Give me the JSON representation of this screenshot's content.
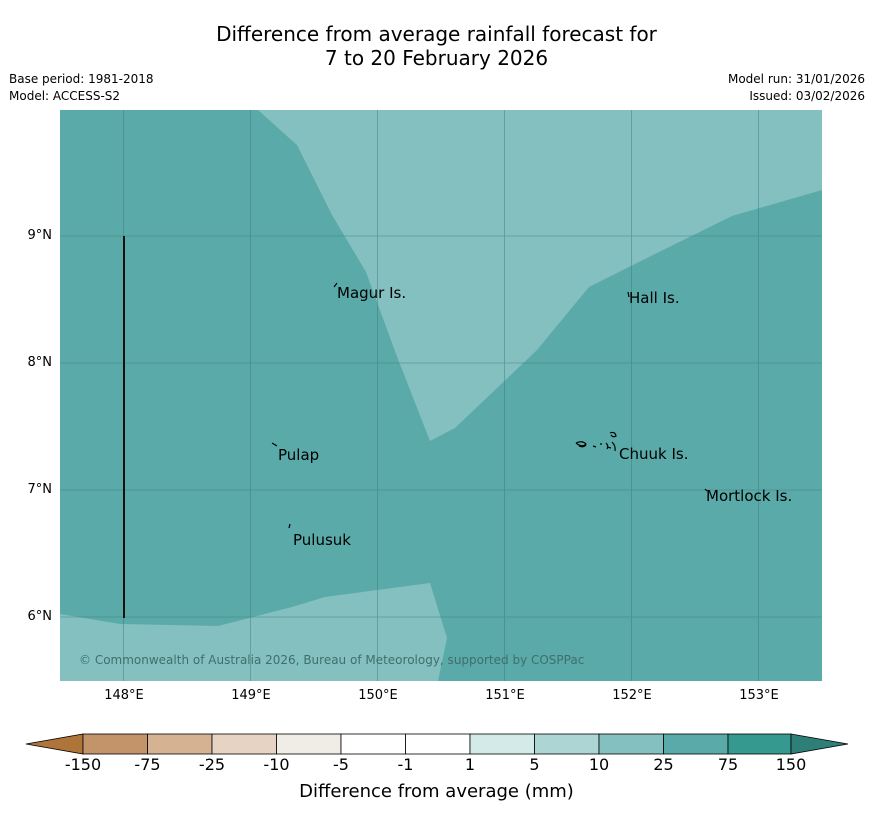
{
  "title": {
    "line1": "Difference from average rainfall forecast for",
    "line2": "7 to 20 February 2026"
  },
  "meta": {
    "base_period": "Base period: 1981-2018",
    "model": "Model: ACCESS-S2",
    "model_run": "Model run: 31/01/2026",
    "issued": "Issued: 03/02/2026"
  },
  "map": {
    "lat_labels": [
      "9°N",
      "8°N",
      "7°N",
      "6°N"
    ],
    "lon_labels": [
      "148°E",
      "149°E",
      "150°E",
      "151°E",
      "152°E",
      "153°E"
    ],
    "places": [
      "Magur Is.",
      "Hall Is.",
      "Pulap",
      "Chuuk Is.",
      "Mortlock Is.",
      "Pulusuk"
    ],
    "copyright": "© Commonwealth of Australia 2026, Bureau of Meteorology, supported by COSPPac",
    "colors": {
      "band_25_75": "#5aaaa9",
      "band_10_25": "#84c0bf",
      "grid": "#3f7e7b"
    }
  },
  "colorbar": {
    "ticks": [
      "-150",
      "-75",
      "-25",
      "-10",
      "-5",
      "-1",
      "1",
      "5",
      "10",
      "25",
      "75",
      "150"
    ],
    "label": "Difference from average (mm)",
    "colors": [
      "#ae743a",
      "#c3936a",
      "#d5b392",
      "#e6d3c3",
      "#f0ede7",
      "#ffffff",
      "#d3eae8",
      "#add5d3",
      "#84c0bf",
      "#5aaaa9",
      "#36998f",
      "#2d7f78"
    ]
  }
}
